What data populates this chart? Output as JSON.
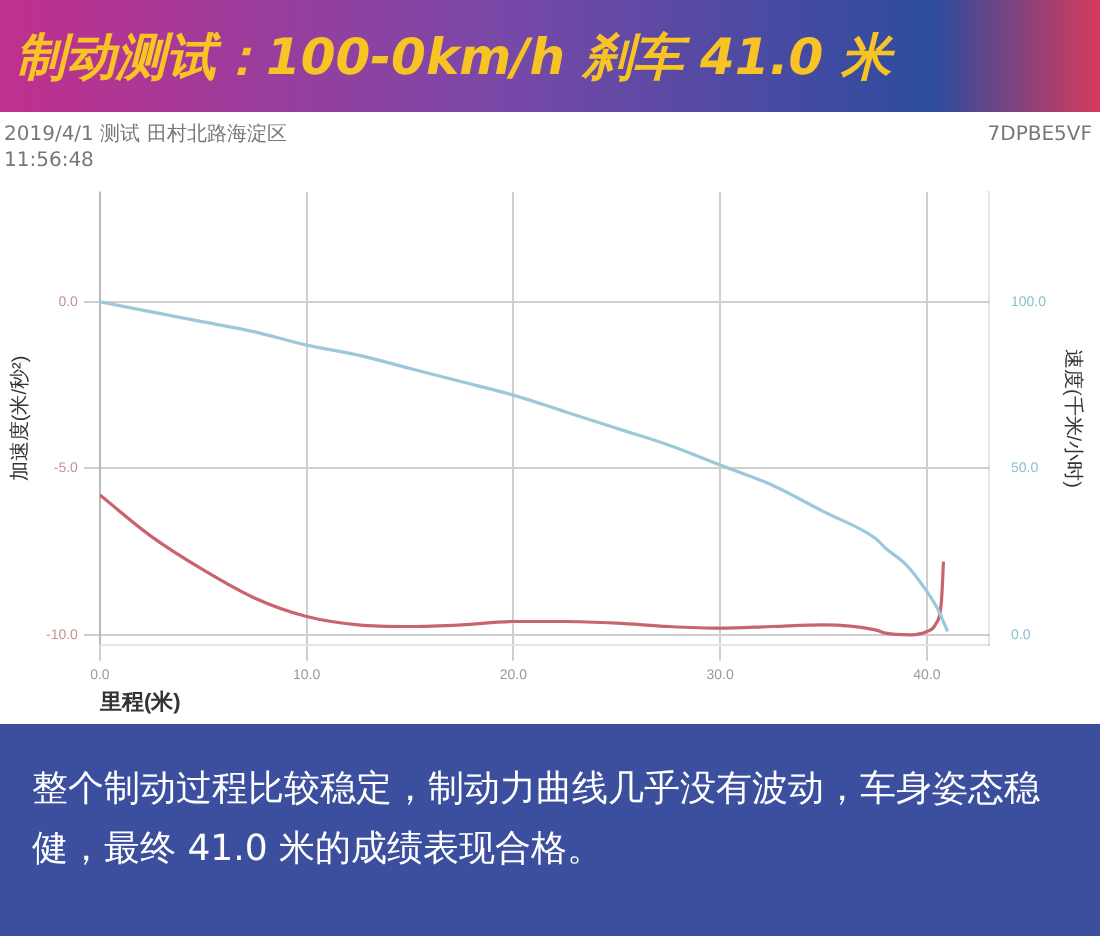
{
  "chart_data": {
    "type": "line",
    "title": "制动测试：100-0km/h 刹车 41.0 米",
    "subtitle": "2019/4/1 测试 田村北路海淀区",
    "xlabel": "里程(米)",
    "ylabel": "加速度(米/秒²)",
    "y2label": "速度(千米/小时)",
    "annotations": [
      "11:56:48",
      "7DPBE5VF",
      "整个制动过程比较稳定，制动力曲线几乎没有波动，车身姿态稳健，最终 41.0 米的成绩表现合格。"
    ],
    "xlim": [
      0,
      43
    ],
    "xticks": [
      {
        "value": 0,
        "label": "0.0"
      },
      {
        "value": 10,
        "label": "10.0"
      },
      {
        "value": 20,
        "label": "20.0"
      },
      {
        "value": 30,
        "label": "30.0"
      },
      {
        "value": 40,
        "label": "40.0"
      }
    ],
    "ylim": [
      -10.3,
      3.3
    ],
    "yticks": [
      {
        "value": -10,
        "label": "-10.0"
      },
      {
        "value": -5,
        "label": "-5.0"
      },
      {
        "value": 0,
        "label": "0.0"
      }
    ],
    "y2lim": [
      -3,
      133
    ],
    "y2ticks": [
      {
        "value": 0,
        "label": "0.0"
      },
      {
        "value": 50,
        "label": "50.0"
      },
      {
        "value": 100,
        "label": "100.0"
      }
    ],
    "grid": true,
    "marker": "none",
    "series": [
      {
        "color": "#9cc9d9",
        "axis": "y2",
        "x": [
          0,
          2.5,
          5,
          7.5,
          10,
          12.5,
          15,
          17.5,
          20,
          22.5,
          25,
          27.5,
          30,
          32.5,
          35,
          37.5,
          38,
          39,
          40,
          40.5,
          41
        ],
        "values": [
          100,
          97,
          94,
          91,
          87,
          84,
          80,
          76,
          72,
          67,
          62,
          57,
          51,
          45,
          37,
          29,
          26,
          21,
          13,
          8,
          1
        ]
      },
      {
        "color": "#c8646e",
        "axis": "y",
        "x": [
          0,
          2.5,
          5,
          7.5,
          10,
          12.5,
          15,
          17.5,
          20,
          22.5,
          25,
          27.5,
          30,
          32.5,
          35,
          37.5,
          38,
          39.2,
          40,
          40.4,
          40.7,
          40.8
        ],
        "values": [
          -5.8,
          -7.05,
          -8.05,
          -8.9,
          -9.45,
          -9.7,
          -9.75,
          -9.7,
          -9.6,
          -9.6,
          -9.65,
          -9.75,
          -9.8,
          -9.75,
          -9.7,
          -9.85,
          -9.95,
          -10,
          -9.9,
          -9.7,
          -9.0,
          -7.8
        ]
      }
    ]
  }
}
